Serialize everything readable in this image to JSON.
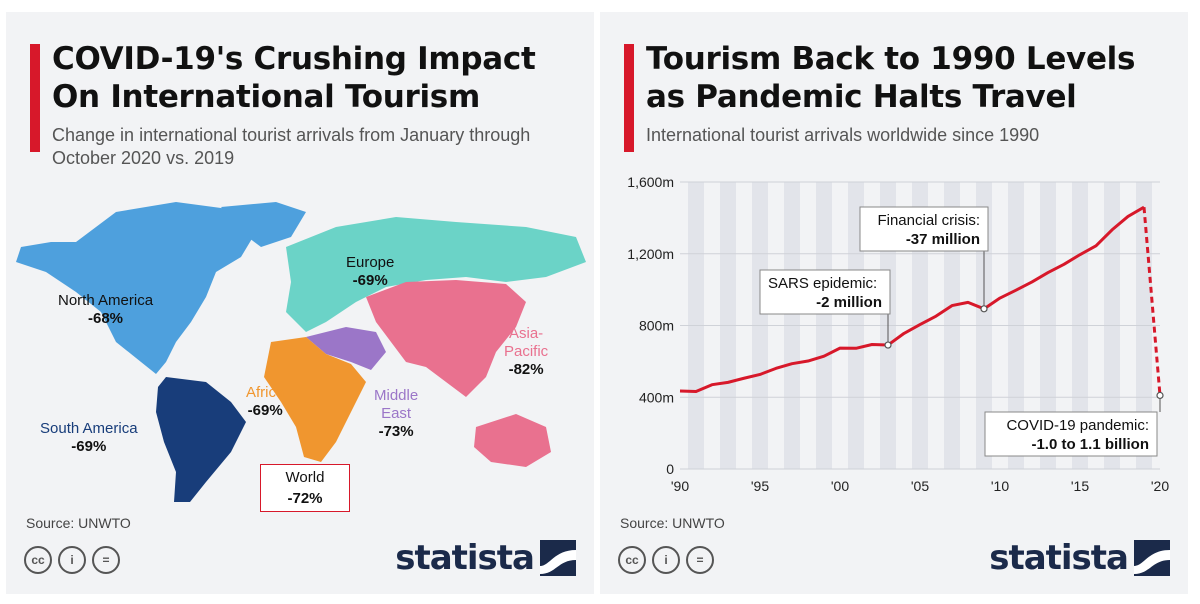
{
  "left": {
    "title": "COVID-19's Crushing Impact On International Tourism",
    "subtitle": "Change in international tourist arrivals from January through October 2020 vs. 2019",
    "source": "Source: UNWTO",
    "brand": "statista",
    "license_icons": [
      "cc-icon",
      "attribution-icon",
      "no-derivatives-icon"
    ],
    "regions": [
      {
        "name": "North America",
        "change": "-68%",
        "color": "#4ea0dd"
      },
      {
        "name": "Europe",
        "change": "-69%",
        "color": "#6bd3c7"
      },
      {
        "name": "Asia-",
        "name2": "Pacific",
        "change": "-82%",
        "color": "#e9718f"
      },
      {
        "name": "Africa",
        "change": "-69%",
        "color": "#f0962f"
      },
      {
        "name": "Middle",
        "name2": "East",
        "change": "-73%",
        "color": "#9b76c8"
      },
      {
        "name": "South America",
        "change": "-69%",
        "color": "#183d7a"
      },
      {
        "name": "World",
        "change": "-72%",
        "color": "#d7182a"
      }
    ]
  },
  "right": {
    "title": "Tourism Back to 1990 Levels as Pandemic Halts Travel",
    "subtitle": "International tourist arrivals worldwide since 1990",
    "source": "Source: UNWTO",
    "brand": "statista",
    "license_icons": [
      "cc-icon",
      "attribution-icon",
      "no-derivatives-icon"
    ]
  },
  "chart_data": [
    {
      "type": "table",
      "title": "COVID-19's Crushing Impact On International Tourism",
      "subtitle": "Change in international tourist arrivals from January through October 2020 vs. 2019",
      "categories": [
        "North America",
        "Europe",
        "Asia-Pacific",
        "Africa",
        "Middle East",
        "South America",
        "World"
      ],
      "values": [
        -68,
        -69,
        -82,
        -69,
        -73,
        -69,
        -72
      ],
      "unit": "%"
    },
    {
      "type": "line",
      "title": "Tourism Back to 1990 Levels as Pandemic Halts Travel",
      "subtitle": "International tourist arrivals worldwide since 1990",
      "x": [
        1990,
        1991,
        1992,
        1993,
        1994,
        1995,
        1996,
        1997,
        1998,
        1999,
        2000,
        2001,
        2002,
        2003,
        2004,
        2005,
        2006,
        2007,
        2008,
        2009,
        2010,
        2011,
        2012,
        2013,
        2014,
        2015,
        2016,
        2017,
        2018,
        2019
      ],
      "values": [
        435,
        432,
        470,
        483,
        506,
        527,
        561,
        587,
        602,
        629,
        674,
        673,
        694,
        691,
        756,
        805,
        852,
        911,
        929,
        893,
        953,
        997,
        1043,
        1095,
        1141,
        1195,
        1244,
        1333,
        1408,
        1460
      ],
      "projection": {
        "x": [
          2019,
          2020
        ],
        "values": [
          1460,
          410
        ]
      },
      "xlim": [
        1990,
        2020
      ],
      "ylim": [
        0,
        1600
      ],
      "xticks": [
        1990,
        1995,
        2000,
        2005,
        2010,
        2015,
        2020
      ],
      "xtick_labels": [
        "'90",
        "'95",
        "'00",
        "'05",
        "'10",
        "'15",
        "'20"
      ],
      "yticks": [
        0,
        400,
        800,
        1200,
        1600
      ],
      "ytick_labels": [
        "0",
        "400m",
        "800m",
        "1,200m",
        "1,600m"
      ],
      "line_color": "#d7182a",
      "grid": true,
      "annotations": [
        {
          "line1": "SARS epidemic:",
          "line2": "-2 million",
          "x": 2003,
          "y": 691
        },
        {
          "line1": "Financial crisis:",
          "line2": "-37 million",
          "x": 2009,
          "y": 893
        },
        {
          "line1": "COVID-19 pandemic:",
          "line2": "-1.0 to 1.1 billion",
          "x": 2020,
          "y": 410
        }
      ]
    }
  ]
}
